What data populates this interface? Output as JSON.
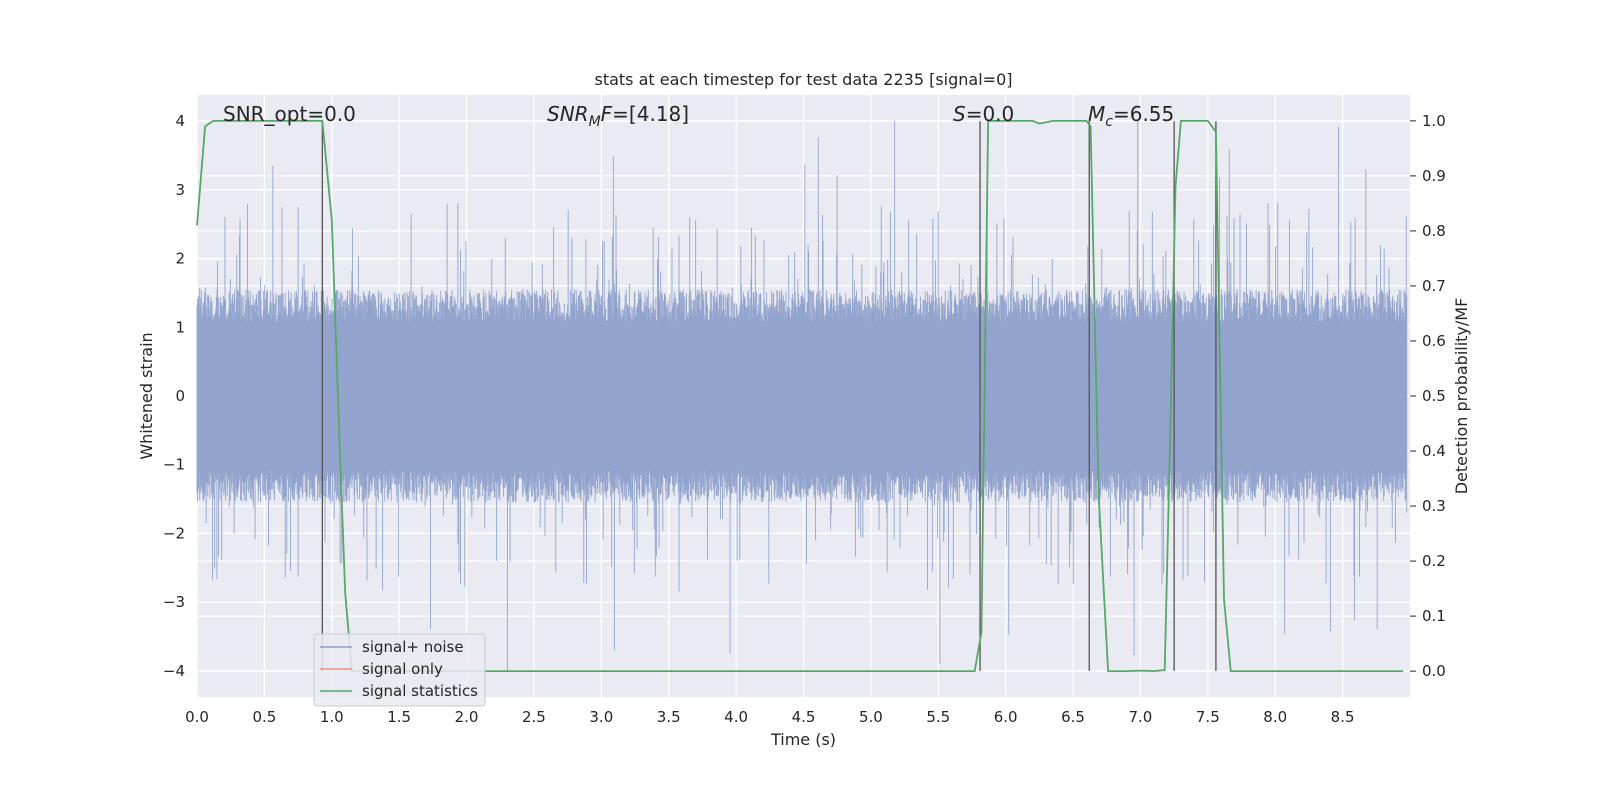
{
  "chart_data": {
    "type": "line",
    "title": "stats at each timestep for test data 2235 [signal=0]",
    "xlabel": "Time (s)",
    "ylabel": "Whitened strain",
    "y2label": "Detection probability/MF",
    "xlim": [
      0.0,
      9.0
    ],
    "ylim": [
      -4.38,
      4.38
    ],
    "y2lim": [
      -0.047,
      1.047
    ],
    "xticks": [
      0.0,
      0.5,
      1.0,
      1.5,
      2.0,
      2.5,
      3.0,
      3.5,
      4.0,
      4.5,
      5.0,
      5.5,
      6.0,
      6.5,
      7.0,
      7.5,
      8.0,
      8.5
    ],
    "xtick_labels": [
      "0.0",
      "0.5",
      "1.0",
      "1.5",
      "2.0",
      "2.5",
      "3.0",
      "3.5",
      "4.0",
      "4.5",
      "5.0",
      "5.5",
      "6.0",
      "6.5",
      "7.0",
      "7.5",
      "8.0",
      "8.5"
    ],
    "yticks": [
      -4,
      -3,
      -2,
      -1,
      0,
      1,
      2,
      3,
      4
    ],
    "ytick_labels": [
      "−4",
      "−3",
      "−2",
      "−1",
      "0",
      "1",
      "2",
      "3",
      "4"
    ],
    "y2ticks": [
      0.0,
      0.1,
      0.2,
      0.3,
      0.4,
      0.5,
      0.6,
      0.7,
      0.8,
      0.9,
      1.0
    ],
    "y2tick_labels": [
      "0.0",
      "0.1",
      "0.2",
      "0.3",
      "0.4",
      "0.5",
      "0.6",
      "0.7",
      "0.8",
      "0.9",
      "1.0"
    ],
    "grid": true,
    "legend_placement": "lower-left",
    "annotations": {
      "snr_opt": "SNR_opt=0.0",
      "snr_mf_base": "SNR",
      "snr_mf_sub": "M",
      "snr_mf_rest": "F=[4.18]",
      "s_italic": "S",
      "s_rest": "=0.0",
      "mc_base": "M",
      "mc_sub": "c",
      "mc_rest": "=6.55"
    },
    "series": [
      {
        "name": "signal+ noise",
        "axis": "left",
        "color": "#8da0cb",
        "description_hidden": true,
        "generator": {
          "n": 2250,
          "base_amplitude": 1.55,
          "spike_max": 4.0
        }
      },
      {
        "name": "signal only",
        "axis": "left",
        "color": "#e8957a",
        "x": [],
        "y": []
      },
      {
        "name": "signal statistics",
        "axis": "right",
        "color": "#55a868",
        "x": [
          0.0,
          0.06,
          0.12,
          0.2,
          0.3,
          0.4,
          0.5,
          0.6,
          0.7,
          0.8,
          0.93,
          1.0,
          1.06,
          1.1,
          1.15,
          1.2,
          1.5,
          2.0,
          3.0,
          4.0,
          5.0,
          5.5,
          5.77,
          5.82,
          5.87,
          5.94,
          6.0,
          6.1,
          6.2,
          6.25,
          6.35,
          6.5,
          6.6,
          6.63,
          6.69,
          6.76,
          6.8,
          6.9,
          7.0,
          7.1,
          7.18,
          7.22,
          7.26,
          7.3,
          7.35,
          7.5,
          7.56,
          7.62,
          7.67,
          7.75,
          8.0,
          8.5,
          8.95
        ],
        "y": [
          0.81,
          0.99,
          1.0,
          1.0,
          1.0,
          1.0,
          1.0,
          1.0,
          1.0,
          1.0,
          1.0,
          0.82,
          0.4,
          0.14,
          0.0,
          0.0,
          0.0,
          0.0,
          0.0,
          0.0,
          0.0,
          0.0,
          0.0,
          0.07,
          1.0,
          1.0,
          1.0,
          1.0,
          1.0,
          0.995,
          1.0,
          1.0,
          1.0,
          0.99,
          0.32,
          0.0,
          0.0,
          0.0,
          0.001,
          0.0,
          0.002,
          0.42,
          0.88,
          1.0,
          1.0,
          1.0,
          0.98,
          0.13,
          0.0,
          0.0,
          0.0,
          0.0,
          0.0
        ]
      }
    ],
    "vertical_lines_x": [
      0.93,
      5.81,
      6.62,
      7.25,
      7.56
    ]
  }
}
